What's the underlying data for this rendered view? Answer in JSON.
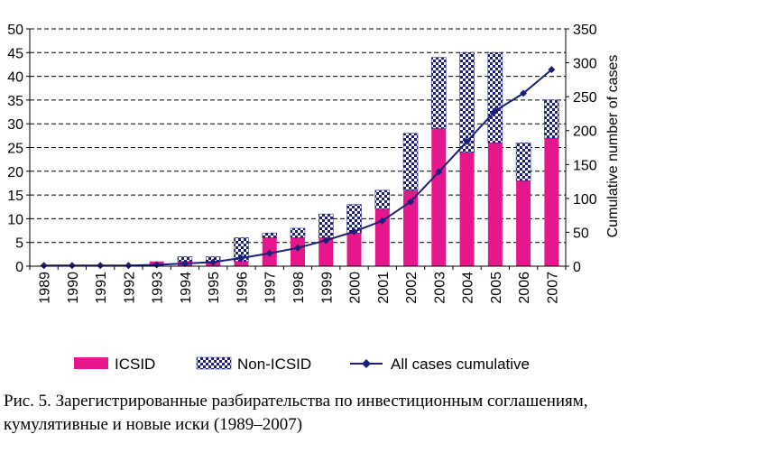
{
  "chart_data": {
    "type": "bar",
    "stacked": true,
    "categories": [
      "1989",
      "1990",
      "1991",
      "1992",
      "1993",
      "1994",
      "1995",
      "1996",
      "1997",
      "1998",
      "1999",
      "2000",
      "2001",
      "2002",
      "2003",
      "2004",
      "2005",
      "2006",
      "2007"
    ],
    "series": [
      {
        "name": "ICSID",
        "kind": "bar",
        "axis": "left",
        "color": "#e6168c",
        "values": [
          0,
          0,
          0,
          0,
          1,
          1,
          1,
          1,
          6,
          6,
          6,
          7,
          12,
          16,
          29,
          24,
          26,
          18,
          27
        ]
      },
      {
        "name": "Non-ICSID",
        "kind": "bar",
        "axis": "left",
        "pattern": "checker",
        "color": "#1a1f7a",
        "values": [
          0,
          0,
          0,
          0,
          0,
          1,
          1,
          5,
          1,
          2,
          5,
          6,
          4,
          12,
          15,
          21,
          19,
          8,
          8
        ]
      },
      {
        "name": "All cases cumulative",
        "kind": "line",
        "axis": "right",
        "color": "#1a1f7a",
        "values": [
          1,
          1,
          1,
          1,
          2,
          4,
          6,
          12,
          19,
          27,
          38,
          51,
          67,
          95,
          139,
          184,
          229,
          255,
          290
        ]
      }
    ],
    "left_axis": {
      "min": 0,
      "max": 50,
      "ticks": [
        0,
        5,
        10,
        15,
        20,
        25,
        30,
        35,
        40,
        45,
        50
      ]
    },
    "right_axis": {
      "min": 0,
      "max": 350,
      "ticks": [
        0,
        50,
        100,
        150,
        200,
        250,
        300,
        350
      ],
      "label": "Cumulative number of cases"
    },
    "grid": "horizontal-dashed",
    "legend": "bottom"
  },
  "caption": {
    "line1": "Рис. 5. Зарегистрированные разбирательства по инвестиционным соглашениям,",
    "line2": "кумулятивные и новые иски (1989–2007)"
  }
}
